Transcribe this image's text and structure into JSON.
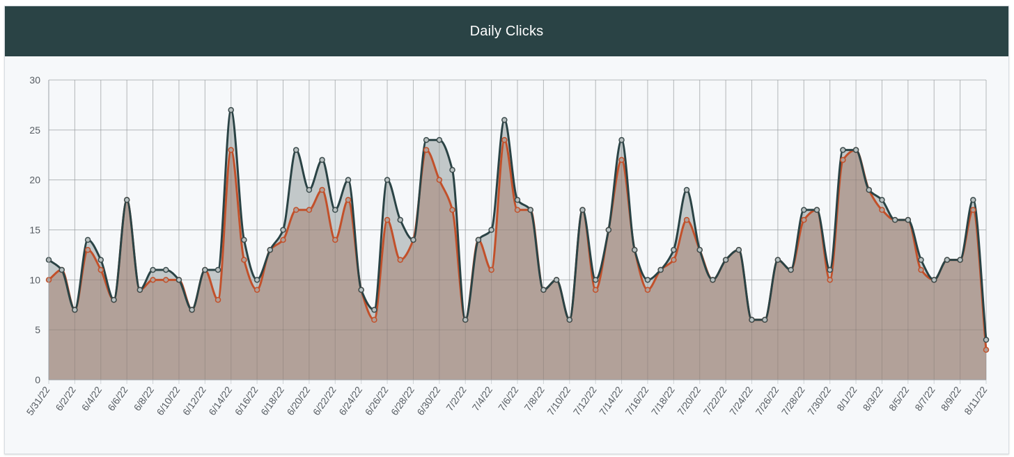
{
  "header": {
    "title": "Daily Clicks"
  },
  "colors": {
    "header_bg": "#2a4345",
    "card_bg": "#f6f8fa",
    "series_1": "#2a4345",
    "series_2": "#c2502a",
    "fill_1": "#b8c0c0",
    "fill_2": "#b19f97",
    "grid": "#cfd3d6"
  },
  "chart_data": {
    "type": "area",
    "title": "Daily Clicks",
    "xlabel": "",
    "ylabel": "",
    "ylim": [
      0,
      30
    ],
    "yticks": [
      0,
      5,
      10,
      15,
      20,
      25,
      30
    ],
    "grid": true,
    "legend": "none",
    "x_tick_labels": [
      "5/31/22",
      "6/2/22",
      "6/4/22",
      "6/6/22",
      "6/8/22",
      "6/10/22",
      "6/12/22",
      "6/14/22",
      "6/16/22",
      "6/18/22",
      "6/20/22",
      "6/22/22",
      "6/24/22",
      "6/26/22",
      "6/28/22",
      "6/30/22",
      "7/2/22",
      "7/4/22",
      "7/6/22",
      "7/8/22",
      "7/10/22",
      "7/12/22",
      "7/14/22",
      "7/16/22",
      "7/18/22",
      "7/20/22",
      "7/22/22",
      "7/24/22",
      "7/26/22",
      "7/28/22",
      "7/30/22",
      "8/1/22",
      "8/3/22",
      "8/5/22",
      "8/7/22",
      "8/9/22",
      "8/11/22"
    ],
    "x": [
      "5/31/22",
      "6/1/22",
      "6/2/22",
      "6/3/22",
      "6/4/22",
      "6/5/22",
      "6/6/22",
      "6/7/22",
      "6/8/22",
      "6/9/22",
      "6/10/22",
      "6/11/22",
      "6/12/22",
      "6/13/22",
      "6/14/22",
      "6/15/22",
      "6/16/22",
      "6/17/22",
      "6/18/22",
      "6/19/22",
      "6/20/22",
      "6/21/22",
      "6/22/22",
      "6/23/22",
      "6/24/22",
      "6/25/22",
      "6/26/22",
      "6/27/22",
      "6/28/22",
      "6/29/22",
      "6/30/22",
      "7/1/22",
      "7/2/22",
      "7/3/22",
      "7/4/22",
      "7/5/22",
      "7/6/22",
      "7/7/22",
      "7/8/22",
      "7/9/22",
      "7/10/22",
      "7/11/22",
      "7/12/22",
      "7/13/22",
      "7/14/22",
      "7/15/22",
      "7/16/22",
      "7/17/22",
      "7/18/22",
      "7/19/22",
      "7/20/22",
      "7/21/22",
      "7/22/22",
      "7/23/22",
      "7/24/22",
      "7/25/22",
      "7/26/22",
      "7/27/22",
      "7/28/22",
      "7/29/22",
      "7/30/22",
      "7/31/22",
      "8/1/22",
      "8/2/22",
      "8/3/22",
      "8/4/22",
      "8/5/22",
      "8/6/22",
      "8/7/22",
      "8/8/22",
      "8/9/22",
      "8/10/22",
      "8/11/22"
    ],
    "series": [
      {
        "values": [
          12,
          11,
          7,
          14,
          12,
          8,
          18,
          9,
          11,
          11,
          10,
          7,
          11,
          11,
          27,
          14,
          10,
          13,
          15,
          23,
          19,
          22,
          17,
          20,
          9,
          7,
          20,
          16,
          14,
          24,
          24,
          21,
          6,
          14,
          15,
          26,
          18,
          17,
          9,
          10,
          6,
          17,
          10,
          15,
          24,
          13,
          10,
          11,
          13,
          19,
          13,
          10,
          12,
          13,
          6,
          6,
          12,
          11,
          17,
          17,
          11,
          23,
          23,
          19,
          18,
          16,
          16,
          12,
          10,
          12,
          12,
          18,
          4
        ]
      },
      {
        "values": [
          10,
          11,
          7,
          13,
          11,
          8,
          18,
          9,
          10,
          10,
          10,
          7,
          11,
          8,
          23,
          12,
          9,
          13,
          14,
          17,
          17,
          19,
          14,
          18,
          9,
          6,
          16,
          12,
          14,
          23,
          20,
          17,
          6,
          14,
          11,
          24,
          17,
          17,
          9,
          10,
          6,
          17,
          9,
          15,
          22,
          13,
          9,
          11,
          12,
          16,
          13,
          10,
          12,
          13,
          6,
          6,
          12,
          11,
          16,
          17,
          10,
          22,
          23,
          19,
          17,
          16,
          16,
          11,
          10,
          12,
          12,
          17,
          3
        ]
      }
    ]
  }
}
